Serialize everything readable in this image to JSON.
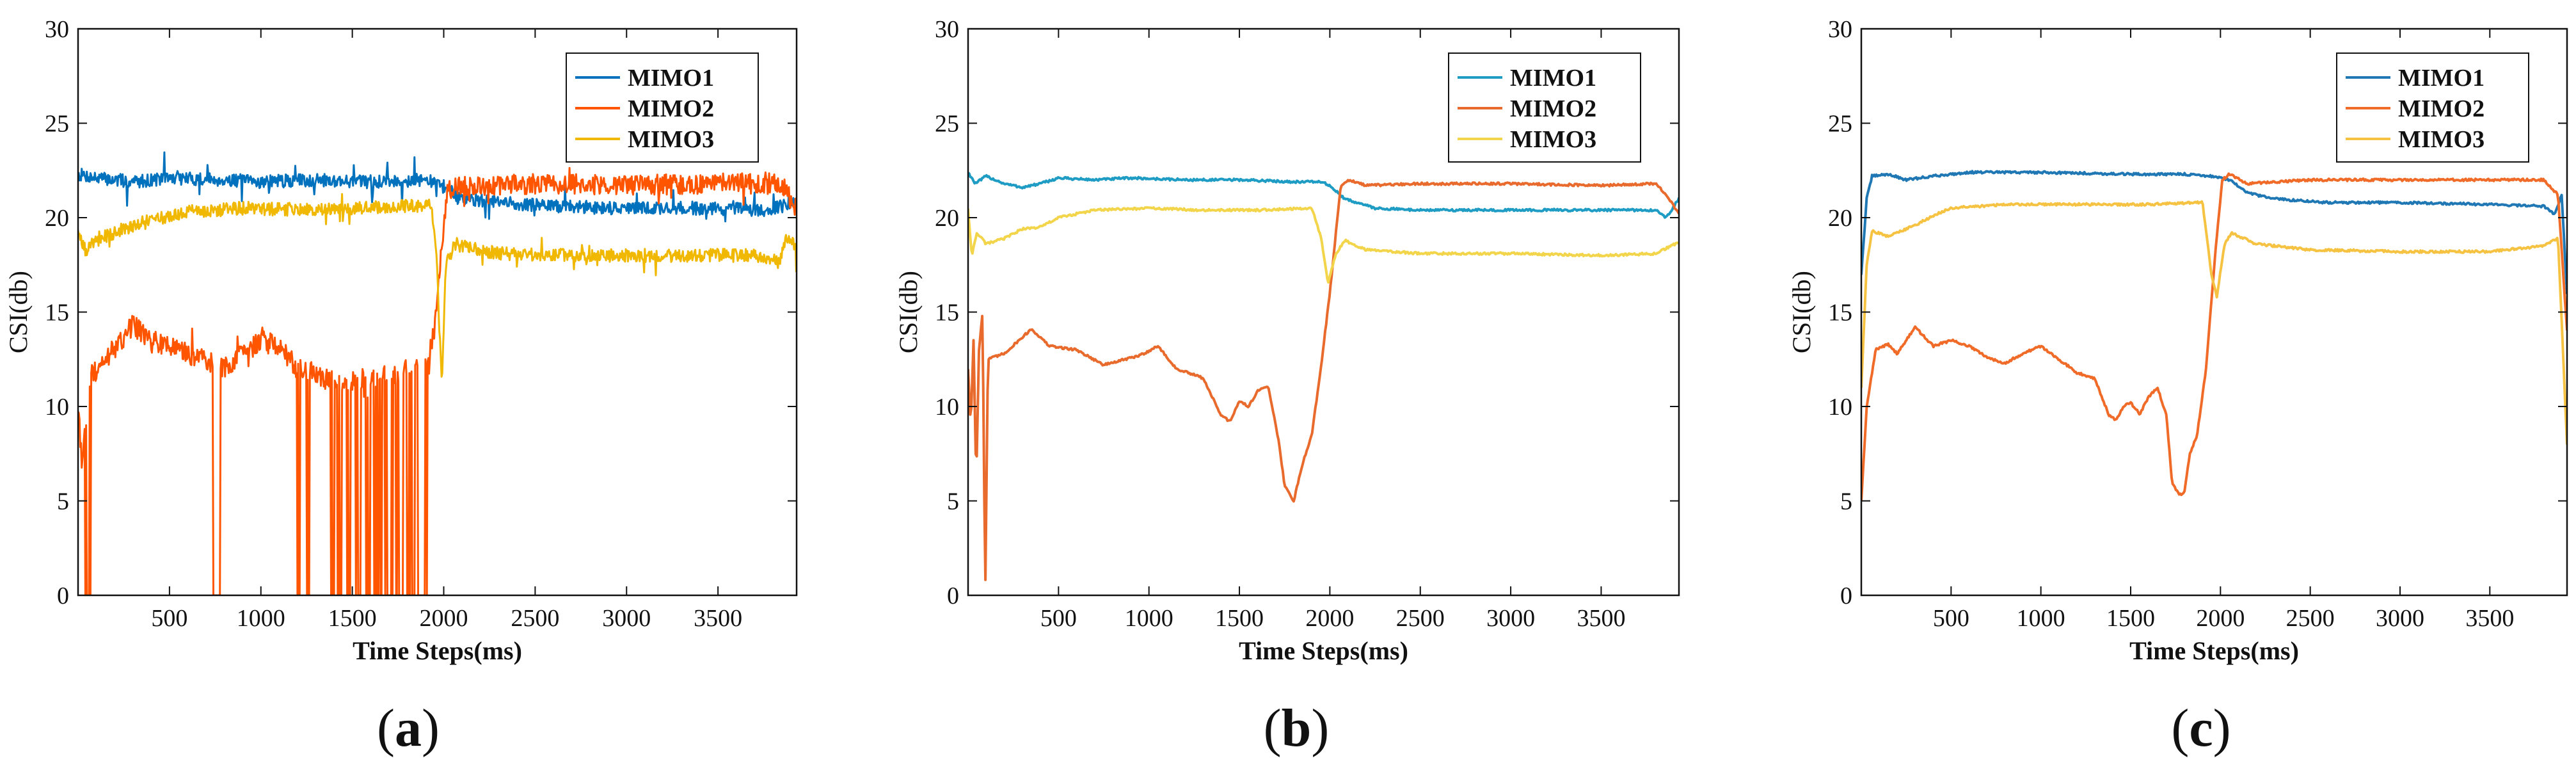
{
  "chart_data": [
    {
      "type": "line",
      "panel_label": "a",
      "xlabel": "Time Steps(ms)",
      "ylabel": "CSI(db)",
      "xlim": [
        0,
        3930
      ],
      "ylim": [
        0,
        30
      ],
      "xticks": [
        500,
        1000,
        1500,
        2000,
        2500,
        3000,
        3500
      ],
      "yticks": [
        0,
        5,
        10,
        15,
        20,
        25,
        30
      ],
      "legend_position": "top-right",
      "noisy": true,
      "series": [
        {
          "name": "MIMO1",
          "color": "#0072BD",
          "points": [
            [
              0,
              22.3
            ],
            [
              100,
              22.1
            ],
            [
              300,
              21.9
            ],
            [
              500,
              22.1
            ],
            [
              800,
              22.0
            ],
            [
              1000,
              21.9
            ],
            [
              1300,
              22.0
            ],
            [
              1600,
              21.9
            ],
            [
              1900,
              22.0
            ],
            [
              1960,
              21.8
            ],
            [
              2010,
              21.6
            ],
            [
              2100,
              21.0
            ],
            [
              2300,
              20.8
            ],
            [
              2600,
              20.6
            ],
            [
              3000,
              20.5
            ],
            [
              3400,
              20.5
            ],
            [
              3750,
              20.4
            ],
            [
              3850,
              20.6
            ],
            [
              3930,
              20.8
            ]
          ]
        },
        {
          "name": "MIMO2",
          "color": "#FF5500",
          "points": [
            [
              0,
              10.0
            ],
            [
              20,
              6.5
            ],
            [
              60,
              11.5
            ],
            [
              150,
              12.5
            ],
            [
              300,
              14.3
            ],
            [
              400,
              13.5
            ],
            [
              600,
              12.8
            ],
            [
              800,
              12.0
            ],
            [
              1000,
              13.5
            ],
            [
              1100,
              13.2
            ],
            [
              1200,
              12.0
            ],
            [
              1400,
              11.3
            ],
            [
              1600,
              11.4
            ],
            [
              1800,
              11.9
            ],
            [
              1900,
              12.2
            ],
            [
              1950,
              14.0
            ],
            [
              1990,
              18.5
            ],
            [
              2020,
              21.5
            ],
            [
              2100,
              21.7
            ],
            [
              2500,
              21.8
            ],
            [
              3000,
              21.7
            ],
            [
              3500,
              21.8
            ],
            [
              3800,
              21.8
            ],
            [
              3870,
              21.5
            ],
            [
              3930,
              20.5
            ]
          ],
          "dropouts": [
            [
              40,
              70
            ],
            [
              740,
              780
            ],
            [
              1200,
              1215
            ],
            [
              1250,
              1265
            ],
            [
              1380,
              1400
            ],
            [
              1420,
              1440
            ],
            [
              1470,
              1490
            ],
            [
              1520,
              1545
            ],
            [
              1570,
              1600
            ],
            [
              1620,
              1660
            ],
            [
              1680,
              1720
            ],
            [
              1740,
              1780
            ],
            [
              1800,
              1840
            ],
            [
              1860,
              1910
            ]
          ]
        },
        {
          "name": "MIMO3",
          "color": "#F0B800",
          "points": [
            [
              0,
              19.5
            ],
            [
              40,
              18.2
            ],
            [
              100,
              18.8
            ],
            [
              300,
              19.6
            ],
            [
              600,
              20.3
            ],
            [
              900,
              20.5
            ],
            [
              1200,
              20.4
            ],
            [
              1500,
              20.5
            ],
            [
              1800,
              20.6
            ],
            [
              1930,
              20.7
            ],
            [
              1960,
              18.0
            ],
            [
              1990,
              11.0
            ],
            [
              2010,
              17.5
            ],
            [
              2060,
              18.6
            ],
            [
              2300,
              18.1
            ],
            [
              2700,
              18.0
            ],
            [
              3200,
              18.0
            ],
            [
              3700,
              18.0
            ],
            [
              3840,
              17.8
            ],
            [
              3870,
              18.8
            ],
            [
              3930,
              18.5
            ]
          ]
        }
      ]
    },
    {
      "type": "line",
      "panel_label": "b",
      "xlabel": "Time Steps(ms)",
      "ylabel": "CSI(db)",
      "xlim": [
        0,
        3930
      ],
      "ylim": [
        0,
        30
      ],
      "xticks": [
        500,
        1000,
        1500,
        2000,
        2500,
        3000,
        3500
      ],
      "yticks": [
        0,
        5,
        10,
        15,
        20,
        25,
        30
      ],
      "legend_position": "top-right",
      "noisy": false,
      "series": [
        {
          "name": "MIMO1",
          "color": "#1E9CC4",
          "points": [
            [
              0,
              22.4
            ],
            [
              40,
              21.8
            ],
            [
              100,
              22.2
            ],
            [
              200,
              21.8
            ],
            [
              300,
              21.6
            ],
            [
              400,
              21.8
            ],
            [
              500,
              22.1
            ],
            [
              700,
              22.0
            ],
            [
              900,
              22.1
            ],
            [
              1200,
              22.0
            ],
            [
              1500,
              22.0
            ],
            [
              1800,
              21.9
            ],
            [
              1950,
              21.9
            ],
            [
              2000,
              21.7
            ],
            [
              2080,
              21.0
            ],
            [
              2150,
              20.8
            ],
            [
              2250,
              20.5
            ],
            [
              2500,
              20.4
            ],
            [
              3000,
              20.4
            ],
            [
              3500,
              20.4
            ],
            [
              3800,
              20.4
            ],
            [
              3860,
              20.0
            ],
            [
              3930,
              21.0
            ]
          ]
        },
        {
          "name": "MIMO2",
          "color": "#E86A2C",
          "points": [
            [
              0,
              12.0
            ],
            [
              15,
              9.0
            ],
            [
              30,
              13.5
            ],
            [
              45,
              6.0
            ],
            [
              60,
              13.0
            ],
            [
              80,
              15.0
            ],
            [
              95,
              0.0
            ],
            [
              110,
              12.5
            ],
            [
              200,
              12.8
            ],
            [
              350,
              14.1
            ],
            [
              450,
              13.2
            ],
            [
              600,
              13.0
            ],
            [
              750,
              12.2
            ],
            [
              950,
              12.7
            ],
            [
              1050,
              13.2
            ],
            [
              1150,
              12.0
            ],
            [
              1300,
              11.5
            ],
            [
              1400,
              9.5
            ],
            [
              1450,
              9.2
            ],
            [
              1500,
              10.3
            ],
            [
              1550,
              10.0
            ],
            [
              1600,
              10.8
            ],
            [
              1660,
              11.1
            ],
            [
              1720,
              8.0
            ],
            [
              1750,
              5.8
            ],
            [
              1800,
              5.0
            ],
            [
              1850,
              7.0
            ],
            [
              1900,
              8.5
            ],
            [
              1950,
              12.0
            ],
            [
              2000,
              16.0
            ],
            [
              2060,
              21.7
            ],
            [
              2100,
              22.0
            ],
            [
              2200,
              21.7
            ],
            [
              2500,
              21.8
            ],
            [
              3000,
              21.8
            ],
            [
              3500,
              21.7
            ],
            [
              3800,
              21.8
            ],
            [
              3860,
              21.2
            ],
            [
              3930,
              20.2
            ]
          ]
        },
        {
          "name": "MIMO3",
          "color": "#F2D54A",
          "points": [
            [
              0,
              20.5
            ],
            [
              20,
              18.0
            ],
            [
              50,
              19.2
            ],
            [
              100,
              18.6
            ],
            [
              200,
              18.9
            ],
            [
              300,
              19.4
            ],
            [
              400,
              19.5
            ],
            [
              500,
              20.0
            ],
            [
              700,
              20.4
            ],
            [
              1000,
              20.5
            ],
            [
              1300,
              20.4
            ],
            [
              1600,
              20.4
            ],
            [
              1900,
              20.5
            ],
            [
              1950,
              19.0
            ],
            [
              1990,
              16.5
            ],
            [
              2030,
              18.0
            ],
            [
              2080,
              18.8
            ],
            [
              2200,
              18.3
            ],
            [
              2500,
              18.1
            ],
            [
              3000,
              18.1
            ],
            [
              3500,
              18.0
            ],
            [
              3800,
              18.1
            ],
            [
              3930,
              18.7
            ]
          ]
        }
      ]
    },
    {
      "type": "line",
      "panel_label": "c",
      "xlabel": "Time Steps(ms)",
      "ylabel": "CSI(db)",
      "xlim": [
        0,
        3930
      ],
      "ylim": [
        0,
        30
      ],
      "xticks": [
        500,
        1000,
        1500,
        2000,
        2500,
        3000,
        3500
      ],
      "yticks": [
        0,
        5,
        10,
        15,
        20,
        25,
        30
      ],
      "legend_position": "top-right",
      "noisy": false,
      "series": [
        {
          "name": "MIMO1",
          "color": "#1F77B4",
          "points": [
            [
              0,
              17.0
            ],
            [
              30,
              21.0
            ],
            [
              60,
              22.2
            ],
            [
              150,
              22.3
            ],
            [
              250,
              22.0
            ],
            [
              400,
              22.2
            ],
            [
              600,
              22.4
            ],
            [
              1000,
              22.4
            ],
            [
              1500,
              22.3
            ],
            [
              1800,
              22.3
            ],
            [
              1950,
              22.2
            ],
            [
              2050,
              22.0
            ],
            [
              2150,
              21.3
            ],
            [
              2300,
              21.0
            ],
            [
              2600,
              20.8
            ],
            [
              3000,
              20.8
            ],
            [
              3500,
              20.7
            ],
            [
              3800,
              20.6
            ],
            [
              3860,
              20.2
            ],
            [
              3900,
              21.2
            ],
            [
              3930,
              16.0
            ]
          ]
        },
        {
          "name": "MIMO2",
          "color": "#F06A28",
          "points": [
            [
              0,
              5.0
            ],
            [
              30,
              10.0
            ],
            [
              80,
              13.0
            ],
            [
              150,
              13.3
            ],
            [
              200,
              12.8
            ],
            [
              300,
              14.2
            ],
            [
              400,
              13.2
            ],
            [
              500,
              13.5
            ],
            [
              600,
              13.2
            ],
            [
              700,
              12.6
            ],
            [
              800,
              12.3
            ],
            [
              900,
              12.8
            ],
            [
              1000,
              13.2
            ],
            [
              1100,
              12.5
            ],
            [
              1200,
              11.8
            ],
            [
              1300,
              11.5
            ],
            [
              1380,
              9.5
            ],
            [
              1420,
              9.3
            ],
            [
              1460,
              10.0
            ],
            [
              1500,
              10.2
            ],
            [
              1550,
              9.6
            ],
            [
              1600,
              10.5
            ],
            [
              1650,
              11.0
            ],
            [
              1700,
              9.5
            ],
            [
              1730,
              6.0
            ],
            [
              1770,
              5.3
            ],
            [
              1800,
              5.5
            ],
            [
              1830,
              7.5
            ],
            [
              1870,
              8.5
            ],
            [
              1920,
              12.0
            ],
            [
              1970,
              18.0
            ],
            [
              2010,
              22.0
            ],
            [
              2050,
              22.3
            ],
            [
              2150,
              21.8
            ],
            [
              2500,
              22.0
            ],
            [
              3000,
              22.0
            ],
            [
              3500,
              22.0
            ],
            [
              3800,
              22.0
            ],
            [
              3880,
              21.2
            ],
            [
              3930,
              14.0
            ]
          ]
        },
        {
          "name": "MIMO3",
          "color": "#F5C242",
          "points": [
            [
              0,
              11.0
            ],
            [
              30,
              17.5
            ],
            [
              60,
              19.3
            ],
            [
              150,
              19.0
            ],
            [
              300,
              19.6
            ],
            [
              400,
              20.1
            ],
            [
              500,
              20.5
            ],
            [
              800,
              20.7
            ],
            [
              1200,
              20.7
            ],
            [
              1600,
              20.7
            ],
            [
              1900,
              20.8
            ],
            [
              1950,
              17.0
            ],
            [
              1980,
              15.8
            ],
            [
              2020,
              18.5
            ],
            [
              2060,
              19.2
            ],
            [
              2200,
              18.6
            ],
            [
              2500,
              18.3
            ],
            [
              3000,
              18.2
            ],
            [
              3500,
              18.2
            ],
            [
              3800,
              18.5
            ],
            [
              3880,
              18.9
            ],
            [
              3930,
              8.0
            ]
          ]
        }
      ]
    }
  ],
  "captions": [
    {
      "open": "(",
      "letter": "a",
      "close": ")"
    },
    {
      "open": "(",
      "letter": "b",
      "close": ")"
    },
    {
      "open": "(",
      "letter": "c",
      "close": ")"
    }
  ]
}
